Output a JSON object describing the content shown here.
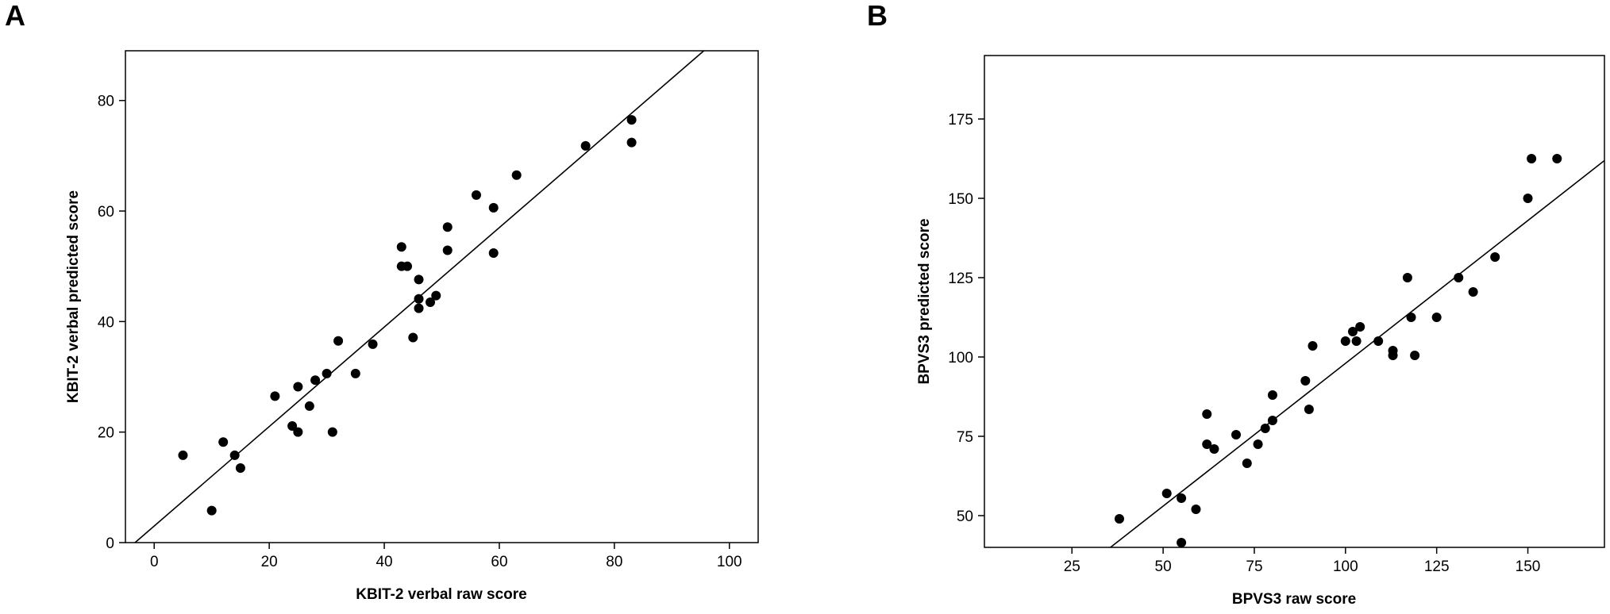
{
  "chart_data": [
    {
      "type": "scatter",
      "panel_label": "A",
      "xlabel": "KBIT-2 verbal raw score",
      "ylabel": "KBIT-2 verbal predicted score",
      "xlim": [
        -5,
        105
      ],
      "ylim": [
        0,
        89
      ],
      "xticks": [
        0,
        20,
        40,
        60,
        80,
        100
      ],
      "yticks": [
        0,
        20,
        40,
        60,
        80
      ],
      "fit_line": {
        "slope": 0.9,
        "intercept": 3.0
      },
      "grid": false,
      "legend": "none",
      "marker_color": "#000000",
      "points": [
        [
          5,
          15.8
        ],
        [
          10,
          5.8
        ],
        [
          12,
          18.2
        ],
        [
          14,
          15.8
        ],
        [
          15,
          13.5
        ],
        [
          21,
          26.5
        ],
        [
          24,
          21.1
        ],
        [
          25,
          20.0
        ],
        [
          25,
          28.2
        ],
        [
          27,
          24.7
        ],
        [
          28,
          29.4
        ],
        [
          30,
          30.6
        ],
        [
          31,
          20.0
        ],
        [
          32,
          36.5
        ],
        [
          35,
          30.6
        ],
        [
          38,
          35.9
        ],
        [
          43,
          50.0
        ],
        [
          43,
          53.5
        ],
        [
          44,
          50.0
        ],
        [
          45,
          37.1
        ],
        [
          46,
          47.6
        ],
        [
          46,
          44.1
        ],
        [
          46,
          42.4
        ],
        [
          48,
          43.5
        ],
        [
          49,
          44.7
        ],
        [
          51,
          57.1
        ],
        [
          51,
          52.9
        ],
        [
          56,
          62.9
        ],
        [
          59,
          60.6
        ],
        [
          59,
          52.4
        ],
        [
          63,
          66.5
        ],
        [
          75,
          71.8
        ],
        [
          83,
          76.5
        ],
        [
          83,
          72.4
        ]
      ]
    },
    {
      "type": "scatter",
      "panel_label": "B",
      "xlabel": "BPVS3 raw score",
      "ylabel": "BPVS3 predicted score",
      "xlim": [
        1,
        171
      ],
      "ylim": [
        40,
        195
      ],
      "xticks": [
        25,
        50,
        75,
        100,
        125,
        150
      ],
      "yticks": [
        50,
        75,
        100,
        125,
        150,
        175
      ],
      "fit_line": {
        "slope": 0.9,
        "intercept": 8.0
      },
      "grid": false,
      "legend": "none",
      "marker_color": "#000000",
      "points": [
        [
          38,
          49
        ],
        [
          51,
          57
        ],
        [
          55,
          55.5
        ],
        [
          55,
          41.5
        ],
        [
          59,
          52
        ],
        [
          62,
          82
        ],
        [
          62,
          72.5
        ],
        [
          64,
          71
        ],
        [
          70,
          75.5
        ],
        [
          73,
          66.5
        ],
        [
          76,
          72.5
        ],
        [
          78,
          77.5
        ],
        [
          80,
          80
        ],
        [
          80,
          88
        ],
        [
          89,
          92.5
        ],
        [
          90,
          83.5
        ],
        [
          91,
          103.5
        ],
        [
          100,
          105
        ],
        [
          102,
          108
        ],
        [
          103,
          105
        ],
        [
          104,
          109.5
        ],
        [
          109,
          105
        ],
        [
          113,
          102
        ],
        [
          113,
          100.5
        ],
        [
          117,
          125
        ],
        [
          118,
          112.5
        ],
        [
          119,
          100.5
        ],
        [
          125,
          112.5
        ],
        [
          131,
          125
        ],
        [
          135,
          120.5
        ],
        [
          141,
          131.5
        ],
        [
          150,
          150
        ],
        [
          151,
          162.5
        ],
        [
          158,
          162.5
        ]
      ]
    }
  ]
}
